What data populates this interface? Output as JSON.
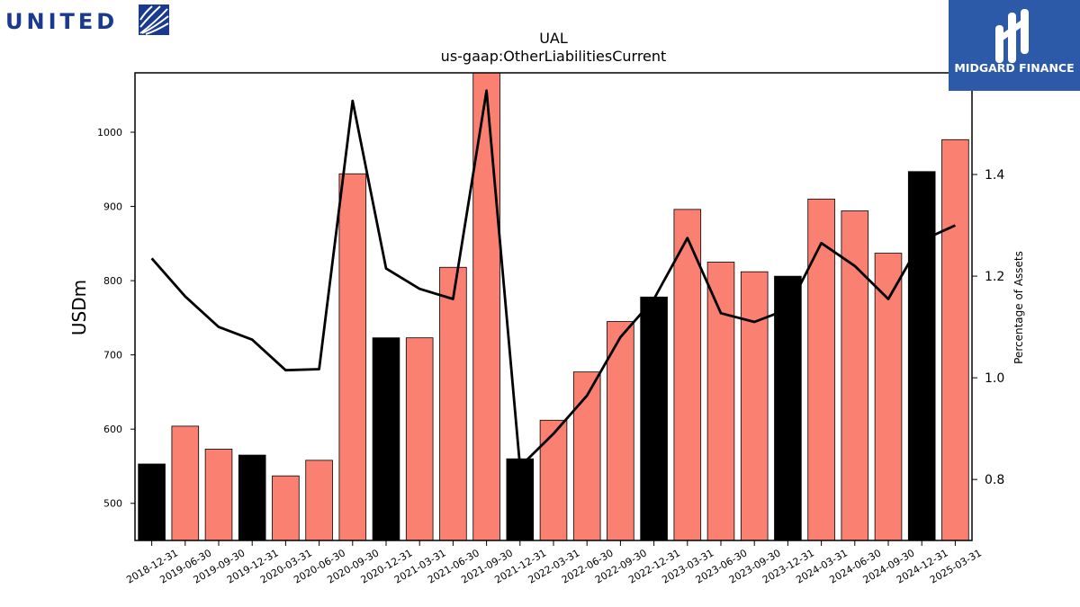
{
  "brand": {
    "left_logo_text": "UNITED",
    "left_logo_color": "#1a3a8f",
    "right_logo_text": "MIDGARD FINANCE",
    "right_logo_bg": "#2d5aa8"
  },
  "chart_data": {
    "type": "bar",
    "title": "UAL",
    "subtitle": "us-gaap:OtherLiabilitiesCurrent",
    "ylabel": "USDm",
    "y2label": "Percentage of Assets",
    "ylim": [
      450,
      1080
    ],
    "y2lim": [
      0.68,
      1.6
    ],
    "yticks": [
      500,
      600,
      700,
      800,
      900,
      1000
    ],
    "y2ticks": [
      0.8,
      1.0,
      1.2,
      1.4
    ],
    "categories": [
      "2018-12-31",
      "2019-06-30",
      "2019-09-30",
      "2019-12-31",
      "2020-03-31",
      "2020-06-30",
      "2020-09-30",
      "2020-12-31",
      "2021-03-31",
      "2021-06-30",
      "2021-09-30",
      "2021-12-31",
      "2022-03-31",
      "2022-06-30",
      "2022-09-30",
      "2022-12-31",
      "2023-03-31",
      "2023-06-30",
      "2023-09-30",
      "2023-12-31",
      "2024-03-31",
      "2024-06-30",
      "2024-09-30",
      "2024-12-31",
      "2025-03-31"
    ],
    "values": [
      553,
      604,
      573,
      565,
      537,
      558,
      944,
      723,
      723,
      818,
      1080,
      560,
      612,
      677,
      745,
      778,
      896,
      825,
      812,
      806,
      910,
      894,
      837,
      947,
      990
    ],
    "bar_colors": [
      "#000000",
      "#fa8072",
      "#fa8072",
      "#000000",
      "#fa8072",
      "#fa8072",
      "#fa8072",
      "#000000",
      "#fa8072",
      "#fa8072",
      "#fa8072",
      "#000000",
      "#fa8072",
      "#fa8072",
      "#fa8072",
      "#000000",
      "#fa8072",
      "#fa8072",
      "#fa8072",
      "#000000",
      "#fa8072",
      "#fa8072",
      "#fa8072",
      "#000000",
      "#fa8072"
    ],
    "series": [
      {
        "axis": "right",
        "type": "line",
        "color": "#000000",
        "values": [
          1.235,
          1.16,
          1.1,
          1.075,
          1.015,
          1.017,
          1.545,
          1.215,
          1.175,
          1.155,
          1.565,
          0.825,
          0.89,
          0.965,
          1.08,
          1.155,
          1.275,
          1.127,
          1.11,
          1.135,
          1.265,
          1.22,
          1.155,
          1.27,
          1.3
        ]
      }
    ]
  }
}
